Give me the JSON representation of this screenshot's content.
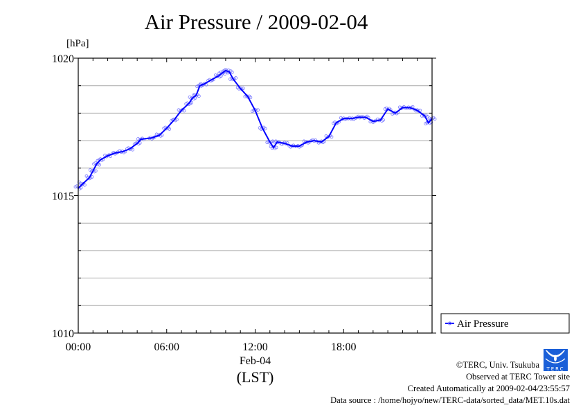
{
  "chart_data": {
    "type": "line",
    "title": "Air Pressure / 2009-02-04",
    "ylabel": "[hPa]",
    "xlabel": "(LST)",
    "date_label": "Feb-04",
    "ylim": [
      1010,
      1020
    ],
    "xlim_hours": [
      0,
      24
    ],
    "yticks": [
      1010,
      1015,
      1020
    ],
    "ytick_labels": [
      "1010",
      "1015",
      "1020"
    ],
    "xticks_hours": [
      0,
      6,
      12,
      18
    ],
    "xtick_labels": [
      "00:00",
      "06:00",
      "12:00",
      "18:00"
    ],
    "grid": true,
    "legend": {
      "position": "right-bottom",
      "entries": [
        "Air Pressure"
      ]
    },
    "series": [
      {
        "name": "Air Pressure",
        "color": "#0000ff",
        "x_hours": [
          0,
          0.25,
          0.75,
          1,
          1.25,
          1.5,
          2,
          2.5,
          3,
          3.5,
          4,
          4.25,
          5,
          5.5,
          6,
          6.5,
          7,
          7.5,
          7.75,
          8,
          8.25,
          8.5,
          9,
          9.5,
          9.75,
          10,
          10.25,
          10.5,
          11,
          11.5,
          12,
          12.5,
          13,
          13.25,
          13.5,
          14,
          14.5,
          15,
          15.5,
          16,
          16.5,
          17,
          17.5,
          18,
          18.5,
          19,
          19.5,
          20,
          20.5,
          21,
          21.5,
          22,
          22.5,
          23,
          23.5,
          23.75,
          24
        ],
        "values": [
          1015.27,
          1015.4,
          1015.65,
          1015.9,
          1016.15,
          1016.3,
          1016.45,
          1016.55,
          1016.6,
          1016.7,
          1016.9,
          1017.05,
          1017.1,
          1017.2,
          1017.45,
          1017.75,
          1018.1,
          1018.35,
          1018.55,
          1018.65,
          1019.0,
          1019.05,
          1019.2,
          1019.35,
          1019.45,
          1019.55,
          1019.5,
          1019.25,
          1018.9,
          1018.6,
          1018.1,
          1017.45,
          1016.95,
          1016.75,
          1016.95,
          1016.9,
          1016.8,
          1016.8,
          1016.95,
          1017.0,
          1016.95,
          1017.15,
          1017.65,
          1017.8,
          1017.8,
          1017.85,
          1017.85,
          1017.7,
          1017.75,
          1018.15,
          1018.0,
          1018.2,
          1018.2,
          1018.1,
          1017.9,
          1017.65,
          1017.8
        ]
      }
    ]
  },
  "footer": {
    "copyright": "©TERC, Univ. Tsukuba",
    "observed": "Observed at TERC Tower site",
    "created": "Created Automatically at 2009-02-04/23:55:57",
    "source": "Data source : /home/hojyo/new/TERC-data/sorted_data/MET.10s.dat",
    "logo_text": "TERC"
  }
}
